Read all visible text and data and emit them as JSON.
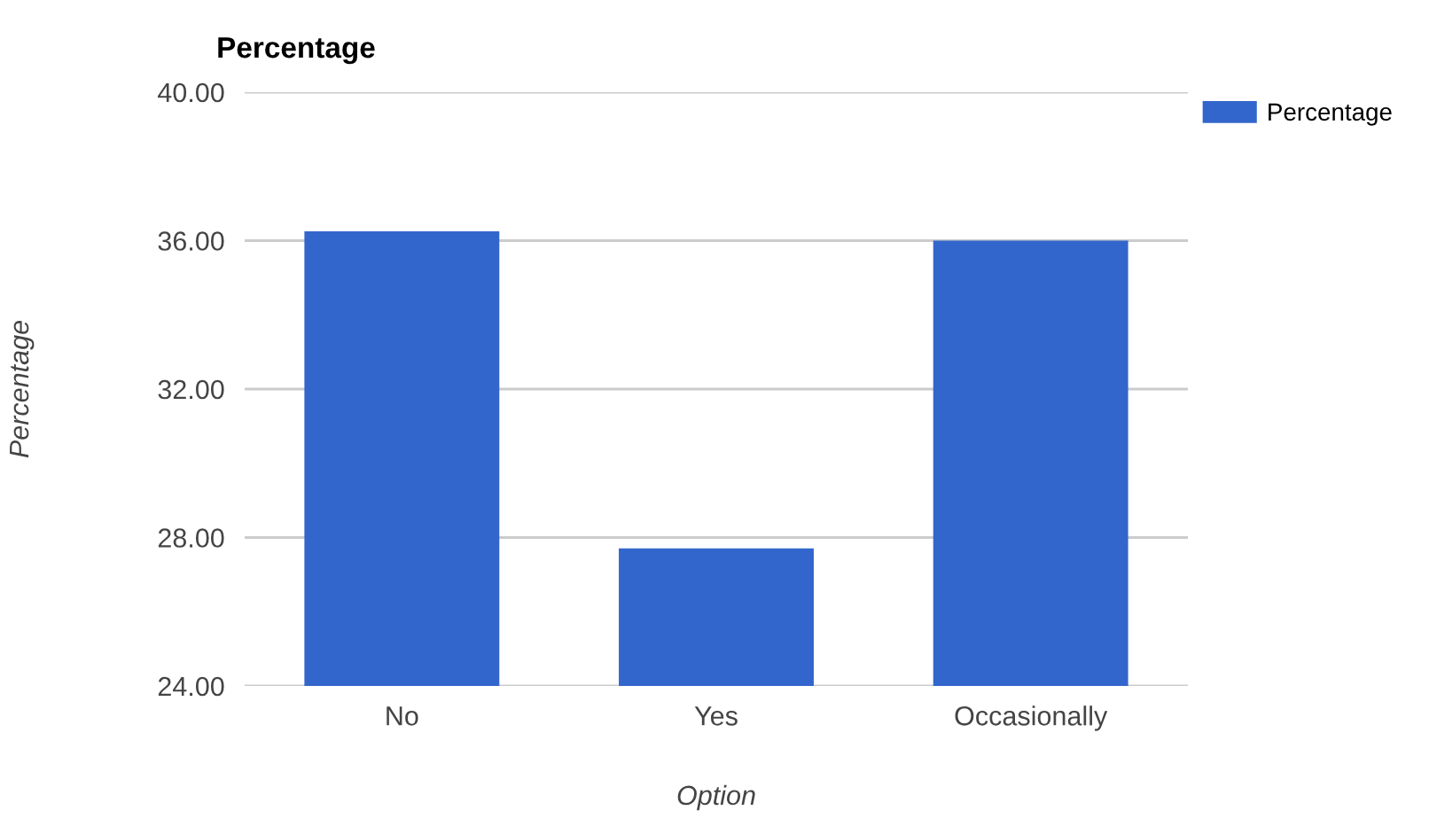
{
  "chart_data": {
    "type": "bar",
    "title": "Percentage",
    "xlabel": "Option",
    "ylabel": "Percentage",
    "categories": [
      "No",
      "Yes",
      "Occasionally"
    ],
    "series": [
      {
        "name": "Percentage",
        "color": "#3366cc",
        "values": [
          36.25,
          27.71,
          36.0
        ]
      }
    ],
    "ylim": [
      24,
      40
    ],
    "yticks": [
      {
        "value": 24,
        "label": "24.00"
      },
      {
        "value": 28,
        "label": "28.00"
      },
      {
        "value": 32,
        "label": "32.00"
      },
      {
        "value": 36,
        "label": "36.00"
      },
      {
        "value": 40,
        "label": "40.00"
      }
    ],
    "grid": "y",
    "legend": "top right"
  }
}
